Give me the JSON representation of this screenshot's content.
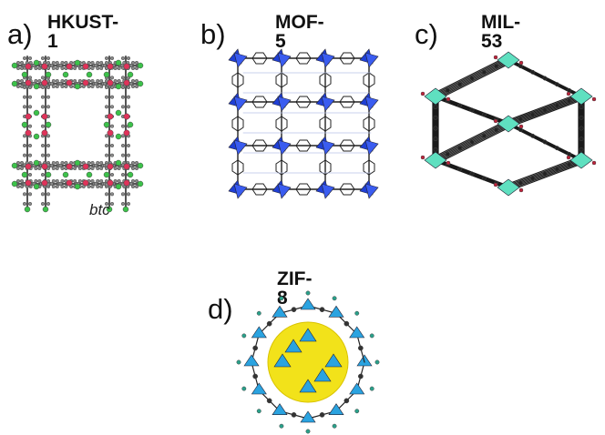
{
  "panels": [
    {
      "letter": "a)",
      "title": "HKUST-1",
      "caption": "btc"
    },
    {
      "letter": "b)",
      "title": "MOF-5",
      "caption": ""
    },
    {
      "letter": "c)",
      "title": "MIL-53",
      "caption": ""
    },
    {
      "letter": "d)",
      "title": "ZIF-8",
      "caption": ""
    }
  ],
  "colors": {
    "carbon": "#8a8a8a",
    "oxygen": "#e0335a",
    "copper_node": "#3cc24a",
    "zinc_tetrahedra": "#1f3fd6",
    "mil53_octahedra": "#5fe0c0",
    "zif8_tetrahedra": "#2aa3e0",
    "zif8_pore_sphere": "#f2e21a",
    "bond": "#333333"
  }
}
